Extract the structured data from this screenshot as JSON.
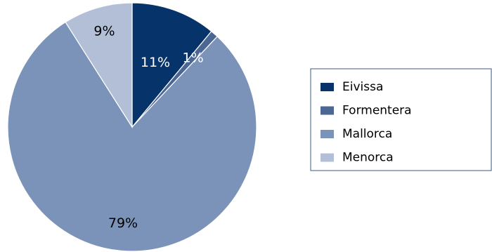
{
  "chart_data": {
    "type": "pie",
    "categories": [
      "Eivissa",
      "Formentera",
      "Mallorca",
      "Menorca"
    ],
    "values": [
      11,
      1,
      79,
      9
    ],
    "data_labels": [
      "11%",
      "1%",
      "79%",
      "9%"
    ],
    "colors": [
      "#06346a",
      "#4d6795",
      "#7b93b8",
      "#b3bfd7"
    ],
    "label_colors": [
      "#ffffff",
      "#ffffff",
      "#000000",
      "#000000"
    ],
    "start_angle": "12 o'clock",
    "direction": "clockwise",
    "legend": {
      "placement": "right",
      "entries": [
        "Eivissa",
        "Formentera",
        "Mallorca",
        "Menorca"
      ]
    }
  }
}
